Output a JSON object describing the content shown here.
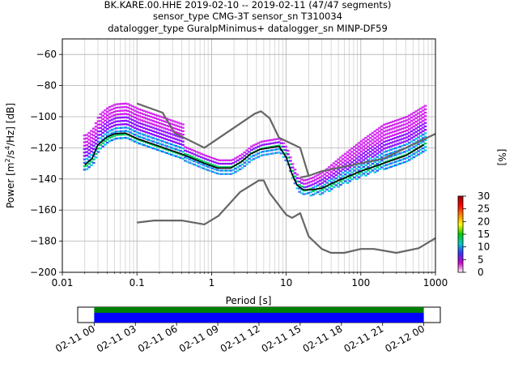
{
  "title": {
    "line1": "BK.KARE.00.HHE   2019-02-10 -- 2019-02-11  (47/47 segments)",
    "line2": "sensor_type CMG-3T sensor_sn T310034",
    "line3": "datalogger_type GuralpMinimus+ datalogger_sn MINP-DF59"
  },
  "chart_data": [
    {
      "type": "heatmap",
      "xlabel": "Period [s]",
      "ylabel": "Power [m²/s⁴/Hz] [dB]",
      "ylabel_main": "Power [m",
      "ylabel_sup1": "2",
      "ylabel_mid": "/s",
      "ylabel_sup2": "4",
      "ylabel_end": "/Hz] [dB]",
      "x_scale": "log",
      "xlim": [
        0.01,
        1000
      ],
      "ylim": [
        -200,
        -50
      ],
      "x_ticks": [
        {
          "value": 0.01,
          "label": "0.01"
        },
        {
          "value": 0.1,
          "label": "0.1"
        },
        {
          "value": 1,
          "label": "1"
        },
        {
          "value": 10,
          "label": "10"
        },
        {
          "value": 100,
          "label": "100"
        },
        {
          "value": 1000,
          "label": "1000"
        }
      ],
      "y_ticks": [
        {
          "value": -60,
          "label": "−60"
        },
        {
          "value": -80,
          "label": "−80"
        },
        {
          "value": -100,
          "label": "−100"
        },
        {
          "value": -120,
          "label": "−120"
        },
        {
          "value": -140,
          "label": "−140"
        },
        {
          "value": -160,
          "label": "−160"
        },
        {
          "value": -180,
          "label": "−180"
        },
        {
          "value": -200,
          "label": "−200"
        }
      ],
      "grid": true,
      "colorbar": {
        "label": "[%]",
        "range": [
          0,
          30
        ],
        "ticks": [
          {
            "value": 0,
            "label": "0"
          },
          {
            "value": 5,
            "label": "5"
          },
          {
            "value": 10,
            "label": "10"
          },
          {
            "value": 15,
            "label": "15"
          },
          {
            "value": 20,
            "label": "20"
          },
          {
            "value": 25,
            "label": "25"
          },
          {
            "value": 30,
            "label": "30"
          }
        ],
        "colors": [
          "#ffffff",
          "#cc00cc",
          "#3333ff",
          "#00cccc",
          "#00cc00",
          "#ffff00",
          "#ff8800",
          "#ff0000",
          "#990000"
        ]
      },
      "series": [
        {
          "name": "",
          "color": "#666666",
          "x": [
            0.1,
            0.22,
            0.32,
            0.8,
            3.8,
            4.6,
            6.0,
            8.0,
            15.4,
            20.0
          ],
          "y": [
            -91.5,
            -97.4,
            -110.5,
            -120.0,
            -98.0,
            -96.5,
            -101.0,
            -113.5,
            -120.0,
            -138.0
          ]
        },
        {
          "name": "",
          "color": "#666666",
          "x": [
            0.1,
            0.17,
            0.4,
            0.8,
            1.24,
            2.4,
            4.3,
            5.0,
            6.0,
            10.0,
            12.0,
            15.4,
            20.0,
            30.0,
            40.0,
            60.0,
            100.0,
            150.0,
            300.0,
            600.0,
            1000.0
          ],
          "y": [
            -168.0,
            -166.7,
            -166.7,
            -169.2,
            -163.7,
            -148.5,
            -141.0,
            -141.0,
            -149.0,
            -163.0,
            -165.0,
            -162.0,
            -177.0,
            -185.0,
            -187.5,
            -187.5,
            -185.0,
            -185.0,
            -187.5,
            -184.5,
            -178.0
          ]
        },
        {
          "name": "",
          "color": "#666666",
          "x": [
            15.4,
            20.0,
            30.0,
            100.0,
            200.0,
            1000.0
          ],
          "y": [
            -139.0,
            -138.0,
            -135.0,
            -130.0,
            -127.0,
            -111.0
          ]
        },
        {
          "name": "",
          "color": "#000000",
          "x": [
            0.02,
            0.025,
            0.03,
            0.04,
            0.05,
            0.07,
            0.1,
            0.2,
            0.4,
            0.8,
            1.2,
            1.8,
            2.5,
            3.3,
            4.5,
            6.0,
            8.0,
            10.0,
            12.0,
            14.0,
            17.0,
            22.0,
            30.0,
            50.0,
            100.0,
            200.0,
            400.0,
            700.0
          ],
          "y": [
            -131.0,
            -127.0,
            -118.0,
            -113.0,
            -111.0,
            -110.5,
            -114.0,
            -119.0,
            -124.0,
            -130.0,
            -133.0,
            -133.0,
            -129.0,
            -124.0,
            -121.0,
            -120.0,
            -119.0,
            -126.0,
            -137.0,
            -144.0,
            -147.0,
            -147.0,
            -146.0,
            -141.0,
            -135.0,
            -130.0,
            -125.0,
            -118.0
          ]
        }
      ]
    },
    {
      "type": "bar",
      "x_ticks": [
        {
          "value": 0,
          "label": "02-11 00"
        },
        {
          "value": 3,
          "label": "02-11 03"
        },
        {
          "value": 6,
          "label": "02-11 06"
        },
        {
          "value": 9,
          "label": "02-11 09"
        },
        {
          "value": 12,
          "label": "02-11 12"
        },
        {
          "value": 15,
          "label": "02-11 15"
        },
        {
          "value": 18,
          "label": "02-11 18"
        },
        {
          "value": 21,
          "label": "02-11 21"
        },
        {
          "value": 24,
          "label": "02-12 00"
        }
      ],
      "xlim": [
        -1.2,
        25.2
      ],
      "series": [
        {
          "name": "",
          "color": "#008000",
          "start": 0,
          "end": 24
        },
        {
          "name": "",
          "color": "#0000ff",
          "start": 0,
          "end": 24
        }
      ]
    }
  ]
}
